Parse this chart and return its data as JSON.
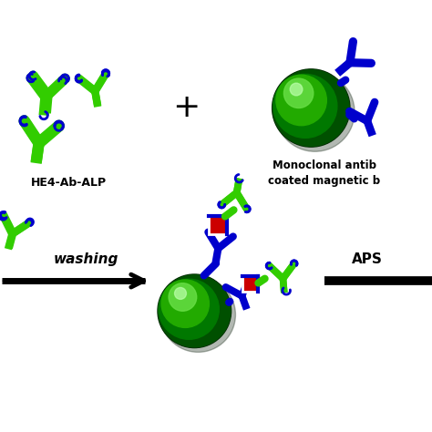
{
  "background_color": "#ffffff",
  "green_color": "#32CD00",
  "blue_color": "#0000CC",
  "red_color": "#CC0000",
  "black_color": "#000000",
  "bead_dark": "#004000",
  "bead_mid": "#006400",
  "bead_bright": "#00AA00",
  "bead_highlight": "#44EE44",
  "bead_spec": "#AAFFAA",
  "label1": "HE4-Ab-ALP",
  "label2_line1": "Monoclonal antib",
  "label2_line2": "coated magnetic b",
  "label3": "washing",
  "label4": "APS",
  "plus_sign": "+",
  "figsize": [
    4.74,
    4.74
  ],
  "dpi": 100
}
